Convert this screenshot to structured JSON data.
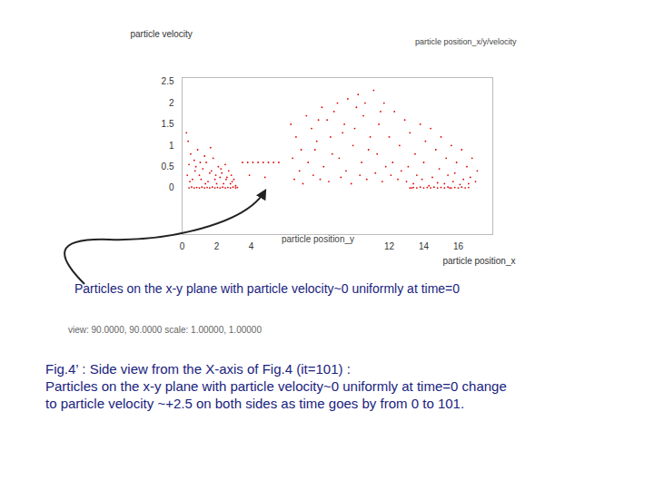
{
  "chart_data": {
    "type": "scatter",
    "x_label": "particle position_x",
    "y_label": "particle velocity",
    "xlim": [
      0,
      18
    ],
    "xticks": [
      0,
      2,
      4,
      12,
      14,
      16
    ],
    "ylim": [
      -1.1,
      2.6
    ],
    "yticks": [
      0,
      0.5,
      1,
      1.5,
      2,
      2.5
    ],
    "grid": false,
    "legend": "top right",
    "annotations": [
      "particle position_y",
      "Particles on the x-y plane with particle velocity~0 uniformly at time=0",
      "view: 90.0000, 90.0000   scale: 1.00000, 1.00000"
    ],
    "caption": [
      "Fig.4’ : Side view from the X-axis of Fig.4 (it=101) :",
      "Particles on the x-y plane with particle velocity~0 uniformly at time=0 change",
      "to particle velocity ~+2.5 on both sides as  time goes by from 0 to 101."
    ],
    "x": [
      0.4,
      0.55,
      0.7,
      0.85,
      1.0,
      1.15,
      1.3,
      1.45,
      1.6,
      1.75,
      1.9,
      2.05,
      2.2,
      2.35,
      2.5,
      2.65,
      2.8,
      2.95,
      3.1,
      3.2,
      0.3,
      0.5,
      0.8,
      1.1,
      1.4,
      1.7,
      2.0,
      2.3,
      2.6,
      2.9,
      0.4,
      0.6,
      0.9,
      1.2,
      1.5,
      1.8,
      2.1,
      2.4,
      2.7,
      3.0,
      0.35,
      0.7,
      1.0,
      1.3,
      1.6,
      1.9,
      2.2,
      2.5,
      2.8,
      3.1,
      0.45,
      0.75,
      1.05,
      1.35,
      1.65,
      1.95,
      2.25,
      2.55,
      2.85,
      0.25,
      3.5,
      3.8,
      4.1,
      4.4,
      4.7,
      5.0,
      5.3,
      5.6,
      3.9,
      4.8,
      6.3,
      6.6,
      6.9,
      7.2,
      7.5,
      7.8,
      8.1,
      8.4,
      8.7,
      9.0,
      9.3,
      9.6,
      9.9,
      10.2,
      10.5,
      10.8,
      11.1,
      11.4,
      11.7,
      12.0,
      12.3,
      12.6,
      12.9,
      13.2,
      13.5,
      13.8,
      14.1,
      14.4,
      14.7,
      15.0,
      15.3,
      15.6,
      15.9,
      16.2,
      16.5,
      16.8,
      17.1,
      6.4,
      6.8,
      7.3,
      7.7,
      8.2,
      8.6,
      9.1,
      9.5,
      10.0,
      10.4,
      10.9,
      11.3,
      11.8,
      12.2,
      12.7,
      13.1,
      13.6,
      14.0,
      14.5,
      14.9,
      15.4,
      15.8,
      16.3,
      16.7,
      17.0,
      6.5,
      7.0,
      7.6,
      8.0,
      8.5,
      9.2,
      9.8,
      10.3,
      10.7,
      11.2,
      11.6,
      12.1,
      12.5,
      13.0,
      13.4,
      13.9,
      14.3,
      14.8,
      15.2,
      15.7,
      16.1,
      16.6,
      7.9,
      8.8,
      9.4,
      10.1,
      10.6,
      11.5,
      13.2,
      13.4,
      13.6,
      13.8,
      14.0,
      14.2,
      14.4,
      14.6,
      14.8,
      15.0,
      15.2,
      15.4,
      15.6,
      15.8,
      16.0,
      16.2,
      16.4,
      16.6,
      13.3,
      15.5
    ],
    "series": [
      {
        "name": "particle position_x/y/velocity",
        "color": "#e00000",
        "marker": "dot",
        "values": [
          0,
          0.02,
          0,
          0.01,
          0,
          0.02,
          0,
          0.01,
          0,
          0.02,
          0,
          0.01,
          0,
          0.02,
          0,
          0.01,
          0,
          0.02,
          0,
          0.01,
          0.3,
          0.8,
          0.5,
          0.2,
          0.6,
          0.4,
          0.1,
          0.35,
          0.25,
          0.15,
          0.55,
          0.2,
          0.9,
          0.45,
          0.15,
          0.7,
          0.5,
          0.1,
          0.4,
          0.2,
          1.1,
          0.65,
          0.3,
          0.75,
          0.35,
          0.2,
          0.25,
          0.55,
          0.1,
          0.05,
          0.15,
          0.4,
          0.6,
          0.1,
          0.95,
          0.3,
          0.45,
          0.2,
          0.3,
          1.3,
          0.6,
          0.6,
          0.6,
          0.6,
          0.6,
          0.6,
          0.6,
          0.6,
          0.3,
          0.25,
          1.5,
          1.2,
          0.9,
          1.7,
          1.4,
          1.1,
          1.9,
          1.6,
          0.8,
          2.0,
          1.3,
          2.1,
          1.0,
          2.2,
          1.7,
          0.9,
          2.3,
          1.5,
          2.0,
          1.2,
          1.8,
          1.0,
          1.6,
          1.3,
          0.8,
          1.5,
          1.1,
          1.4,
          0.9,
          1.2,
          0.7,
          1.0,
          0.6,
          0.9,
          0.5,
          0.7,
          0.4,
          0.7,
          0.4,
          0.6,
          0.9,
          0.5,
          1.2,
          0.7,
          0.4,
          1.4,
          0.6,
          1.2,
          0.8,
          0.5,
          0.6,
          0.4,
          0.5,
          0.3,
          0.6,
          0.25,
          0.45,
          0.3,
          0.35,
          0.2,
          0.25,
          0.15,
          0.2,
          0.1,
          0.3,
          0.2,
          0.15,
          0.25,
          0.1,
          0.3,
          0.2,
          0.35,
          0.15,
          0.3,
          0.2,
          0.15,
          0.1,
          0.2,
          0.05,
          0.12,
          0.1,
          0.15,
          0.08,
          0.1,
          1.6,
          1.8,
          1.5,
          1.9,
          2.0,
          1.8,
          0,
          0.01,
          0,
          0.02,
          0,
          0.01,
          0,
          0.02,
          0,
          0.01,
          0,
          0.02,
          0,
          0.01,
          0,
          0.02,
          0,
          0.01,
          0,
          0
        ]
      }
    ]
  }
}
